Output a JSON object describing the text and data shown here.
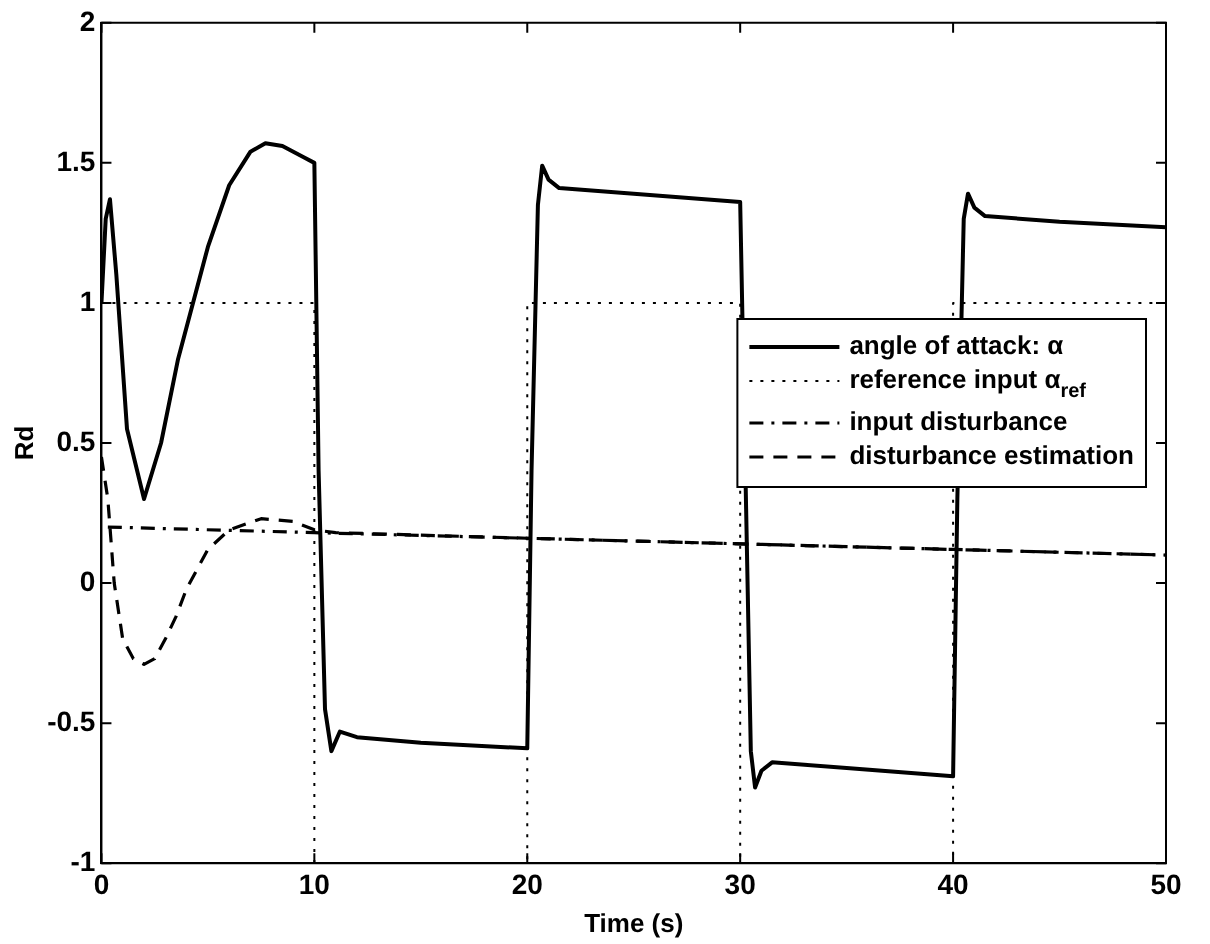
{
  "chart_data": {
    "type": "line",
    "xlabel": "Time (s)",
    "ylabel": "Rd",
    "xlim": [
      0,
      50
    ],
    "xticks": [
      0,
      10,
      20,
      30,
      40,
      50
    ],
    "ylim": [
      -1,
      2
    ],
    "yticks": [
      -1,
      -0.5,
      0,
      0.5,
      1,
      1.5,
      2
    ],
    "grid": false,
    "legend": "right",
    "marker": "none",
    "series": [
      {
        "name": "angle of attack: α",
        "color": "#000000",
        "line_style": "solid",
        "x": [
          0,
          0.2,
          0.4,
          0.7,
          1.2,
          2.0,
          2.8,
          3.6,
          4.3,
          5.0,
          6.0,
          7.0,
          7.7,
          8.5,
          9.5,
          10.0,
          10.2,
          10.5,
          10.8,
          11.2,
          12,
          15,
          20,
          20.2,
          20.5,
          20.7,
          21.0,
          21.5,
          25,
          30,
          30.5,
          30.7,
          31.0,
          31.5,
          35,
          40,
          40.2,
          40.5,
          40.7,
          41.0,
          41.5,
          45,
          50
        ],
        "values": [
          1.0,
          1.3,
          1.37,
          1.1,
          0.55,
          0.3,
          0.5,
          0.8,
          1.0,
          1.2,
          1.42,
          1.54,
          1.57,
          1.56,
          1.52,
          1.5,
          0.4,
          -0.45,
          -0.6,
          -0.53,
          -0.55,
          -0.57,
          -0.59,
          0.4,
          1.35,
          1.49,
          1.44,
          1.41,
          1.39,
          1.36,
          -0.6,
          -0.73,
          -0.67,
          -0.64,
          -0.66,
          -0.69,
          0.3,
          1.3,
          1.39,
          1.34,
          1.31,
          1.29,
          1.27
        ]
      },
      {
        "name": "reference input α$_{ref}$",
        "type": "step",
        "color": "#000000",
        "line_style": "dotted",
        "x": [
          0,
          10,
          20,
          30,
          40,
          50
        ],
        "values": [
          1,
          -1,
          1,
          -1,
          1,
          1
        ]
      },
      {
        "name": "input disturbance",
        "color": "#000000",
        "line_style": "dashdot",
        "x": [
          0.3,
          10,
          20,
          30,
          40,
          50
        ],
        "values": [
          0.2,
          0.18,
          0.16,
          0.14,
          0.12,
          0.1
        ]
      },
      {
        "name": "disturbance estimation",
        "color": "#000000",
        "line_style": "dashed",
        "x": [
          0,
          0.3,
          0.6,
          1.0,
          1.5,
          2.0,
          2.5,
          3.0,
          3.5,
          4.0,
          5.0,
          6.0,
          7.5,
          9.0,
          10,
          11,
          20,
          30,
          40,
          50
        ],
        "values": [
          0.45,
          0.3,
          0.0,
          -0.2,
          -0.27,
          -0.29,
          -0.27,
          -0.2,
          -0.12,
          -0.02,
          0.12,
          0.19,
          0.23,
          0.22,
          0.19,
          0.18,
          0.16,
          0.14,
          0.12,
          0.1
        ]
      }
    ]
  }
}
